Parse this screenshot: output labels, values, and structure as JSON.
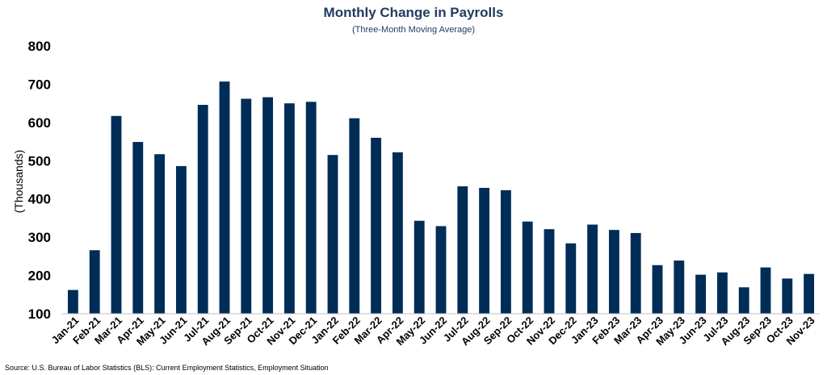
{
  "chart_data": {
    "type": "bar",
    "title": "Monthly Change in Payrolls",
    "subtitle": "(Three-Month Moving Average)",
    "xlabel": "",
    "ylabel": "(Thousands)",
    "ylim": [
      100,
      800
    ],
    "yticks": [
      100,
      200,
      300,
      400,
      500,
      600,
      700,
      800
    ],
    "grid": false,
    "bar_color": "#002d58",
    "categories": [
      "Jan-21",
      "Feb-21",
      "Mar-21",
      "Apr-21",
      "May-21",
      "Jun-21",
      "Jul-21",
      "Aug-21",
      "Sep-21",
      "Oct-21",
      "Nov-21",
      "Dec-21",
      "Jan-22",
      "Feb-22",
      "Mar-22",
      "Apr-22",
      "May-22",
      "Jun-22",
      "Jul-22",
      "Aug-22",
      "Sep-22",
      "Oct-22",
      "Nov-22",
      "Dec-22",
      "Jan-23",
      "Feb-23",
      "Mar-23",
      "Apr-23",
      "May-23",
      "Jun-23",
      "Jul-23",
      "Aug-23",
      "Sep-23",
      "Oct-23",
      "Nov-23"
    ],
    "values": [
      162,
      266,
      617,
      549,
      517,
      486,
      646,
      707,
      662,
      666,
      650,
      654,
      515,
      611,
      560,
      522,
      343,
      329,
      433,
      429,
      423,
      341,
      321,
      284,
      333,
      319,
      311,
      227,
      239,
      202,
      208,
      169,
      221,
      192,
      204
    ]
  },
  "source": "Source: U.S. Bureau of Labor Statistics (BLS): Current Employment Statistics, Employment Situation"
}
